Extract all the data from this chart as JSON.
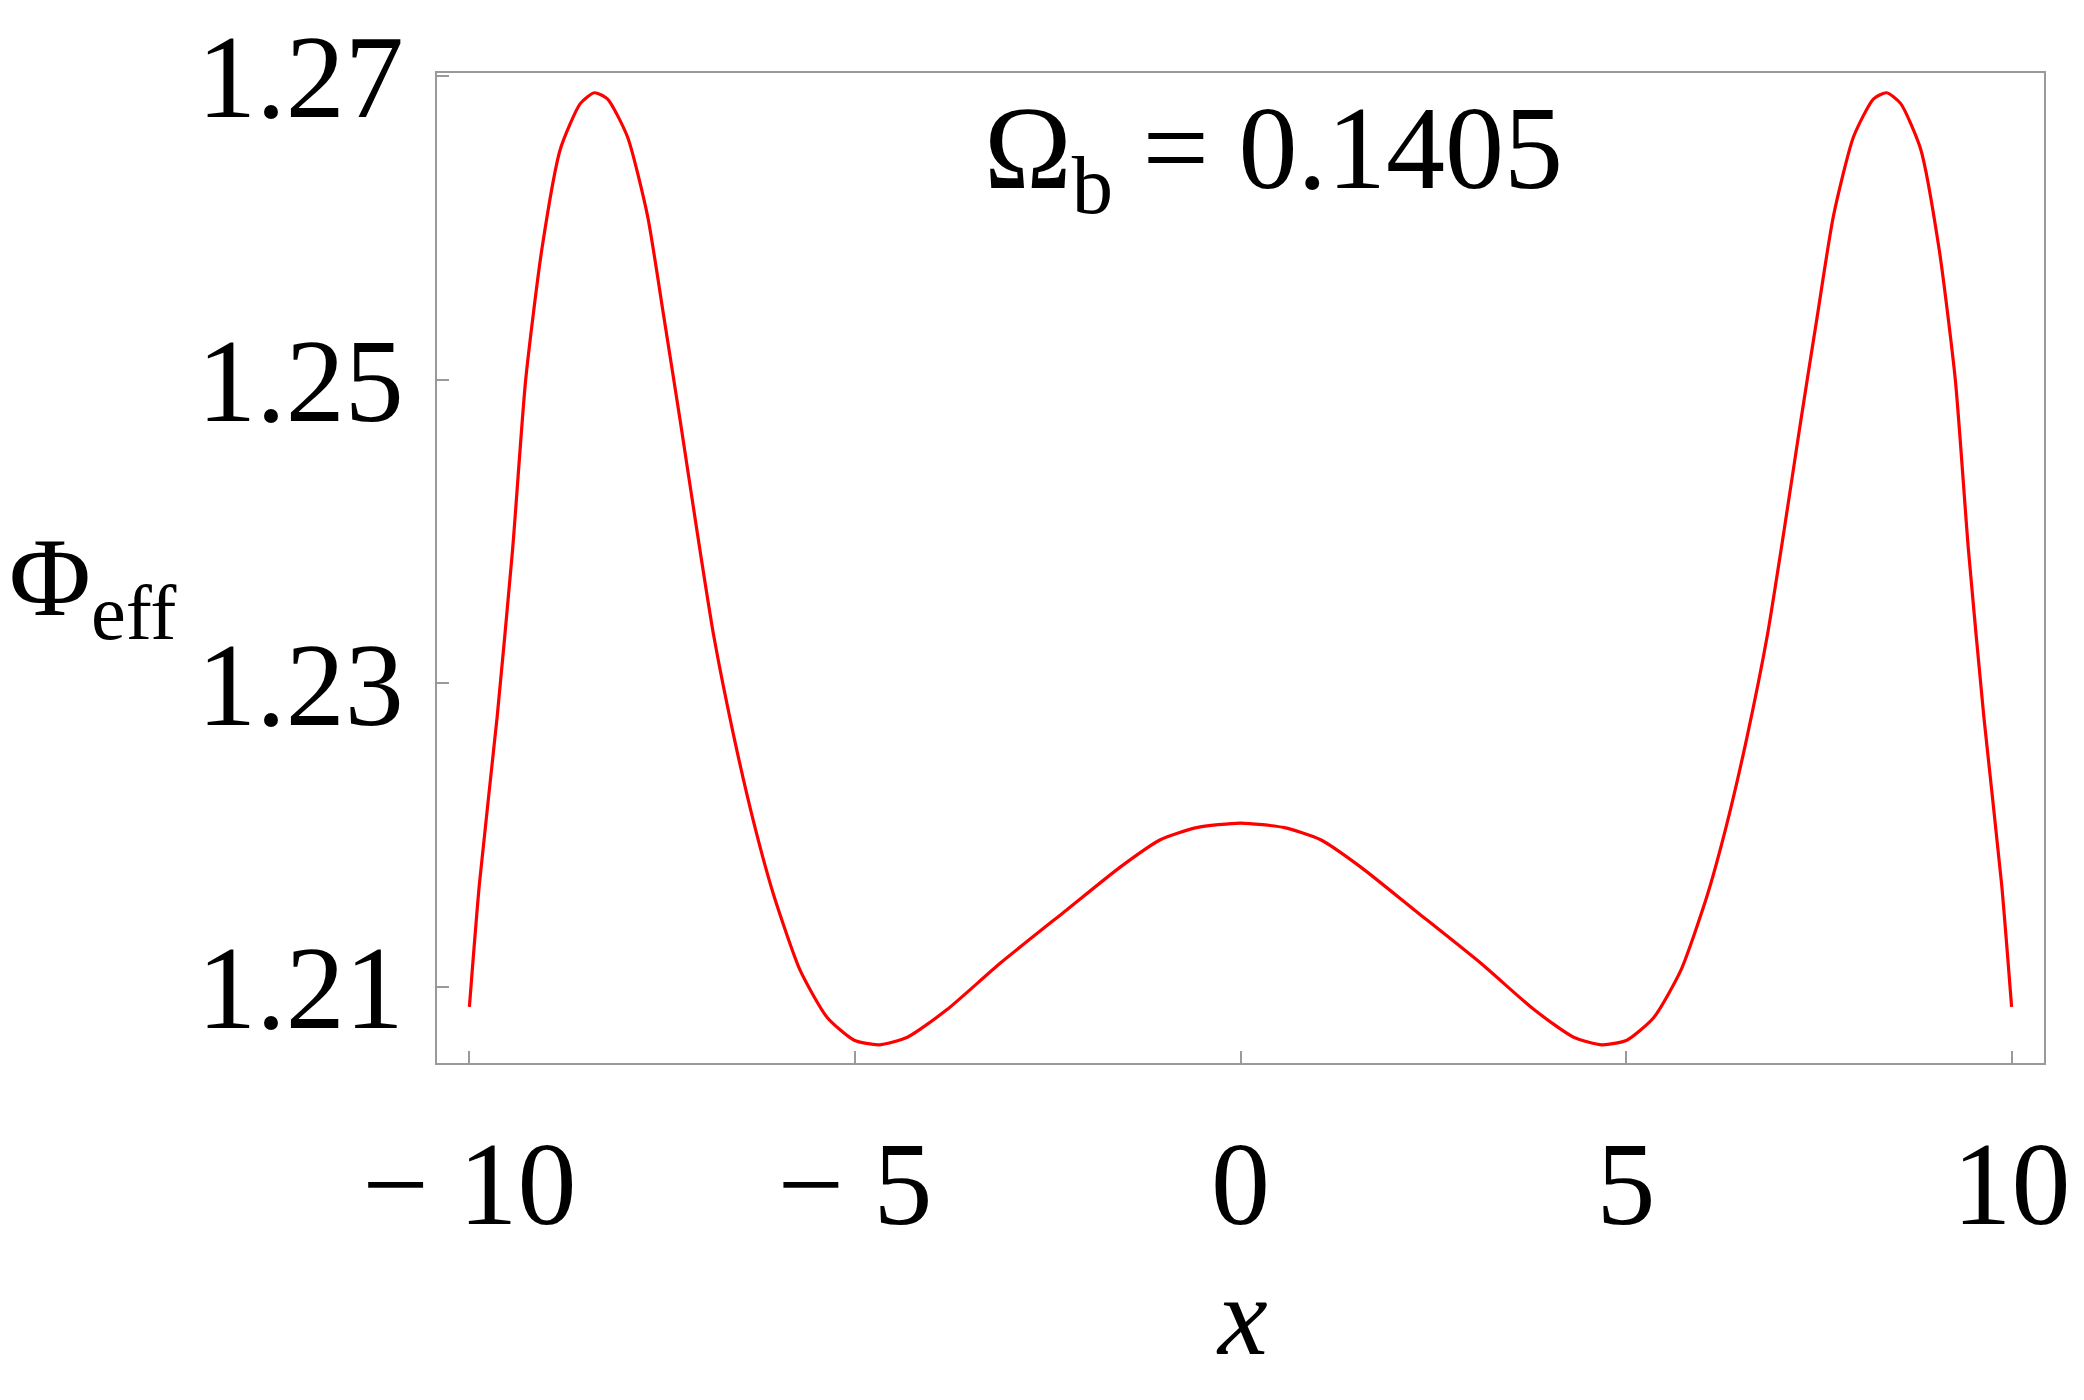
{
  "chart_data": {
    "type": "line",
    "xlabel": "x",
    "ylabel": "Φ$_{eff}$",
    "annotations": [
      "Ω$_{b}$ = 0.1405"
    ],
    "x": [
      -10,
      -9.87,
      -9.64,
      -9.44,
      -9.27,
      -9.06,
      -8.82,
      -8.56,
      -8.38,
      -8.21,
      -7.95,
      -7.69,
      -7.48,
      -7.26,
      -7.05,
      -6.83,
      -6.57,
      -6.31,
      -6.05,
      -5.71,
      -5.36,
      -5.01,
      -4.69,
      -4.32,
      -3.81,
      -3.11,
      -2.25,
      -1.56,
      -1.04,
      -0.57,
      0,
      0.57,
      1.04,
      1.56,
      2.25,
      3.11,
      3.81,
      4.32,
      4.69,
      5.01,
      5.36,
      5.71,
      6.05,
      6.31,
      6.57,
      6.83,
      7.05,
      7.26,
      7.48,
      7.69,
      7.95,
      8.21,
      8.38,
      8.56,
      8.82,
      9.06,
      9.27,
      9.44,
      9.64,
      9.87,
      10
    ],
    "series": [
      {
        "color": "#ff0000",
        "values": [
          1.2087,
          1.2168,
          1.2278,
          1.2388,
          1.25,
          1.2586,
          1.2652,
          1.2682,
          1.2689,
          1.2685,
          1.266,
          1.2608,
          1.2542,
          1.2471,
          1.2401,
          1.2331,
          1.2265,
          1.2208,
          1.216,
          1.2111,
          1.208,
          1.2065,
          1.2062,
          1.2067,
          1.2085,
          1.2116,
          1.2151,
          1.2179,
          1.2197,
          1.2205,
          1.2208,
          1.2205,
          1.2197,
          1.2179,
          1.2151,
          1.2116,
          1.2085,
          1.2067,
          1.2062,
          1.2065,
          1.208,
          1.2111,
          1.216,
          1.2208,
          1.2265,
          1.2331,
          1.2401,
          1.2471,
          1.2542,
          1.2608,
          1.266,
          1.2685,
          1.2689,
          1.2682,
          1.2652,
          1.2586,
          1.25,
          1.2388,
          1.2278,
          1.2168,
          1.2087
        ]
      }
    ],
    "xlim": [
      -10.42,
      10.42
    ],
    "xticks": [
      -10,
      -5,
      0,
      5,
      10
    ],
    "ylim": [
      1.205,
      1.2702
    ],
    "yticks": [
      1.21,
      1.23,
      1.25,
      1.27
    ]
  }
}
